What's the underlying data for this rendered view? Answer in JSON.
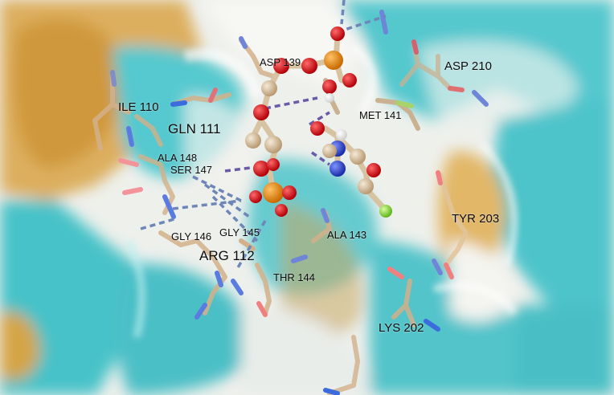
{
  "image": {
    "kind": "molecular-docking-view",
    "colors": {
      "surface_hydrophilic": "#4fc6cc",
      "surface_hydrophobic": "#d9a347",
      "surface_neutral": "#f4f4f0",
      "carbon": "#d8bf9b",
      "oxygen": "#e8141c",
      "nitrogen": "#2a43d8",
      "phosphorus": "#ee8a10",
      "fluorine": "#8fe03a",
      "hydrogen_bond": "#6a5aa8",
      "salt_bridge": "#6e86b8"
    }
  },
  "labels": {
    "asp139": "ASP 139",
    "asp210": "ASP 210",
    "ile110": "ILE 110",
    "met141": "MET 141",
    "gln111": "GLN 111",
    "ala148": "ALA 148",
    "ser147": "SER 147",
    "tyr203": "TYR 203",
    "gly146": "GLY 146",
    "gly145": "GLY 145",
    "ala143": "ALA 143",
    "arg112": "ARG 112",
    "thr144": "THR 144",
    "lys202": "LYS 202"
  }
}
